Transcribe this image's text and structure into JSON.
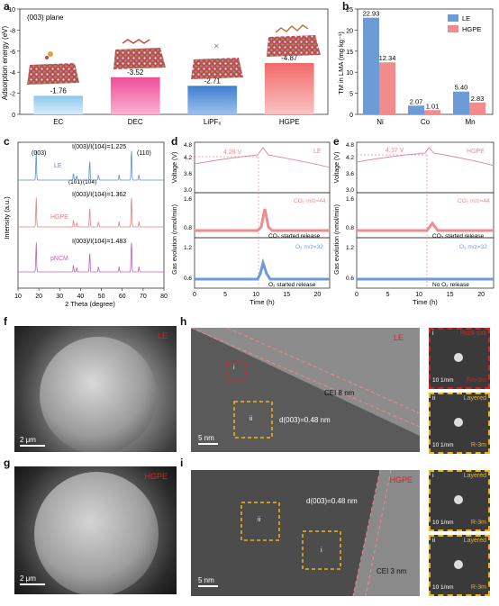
{
  "panels": {
    "a": {
      "label": "a",
      "title": "(003) plane",
      "ylabel": "Adsorption energy (eV)",
      "ticks": [
        "0",
        "-2",
        "-4",
        "-6",
        "-8",
        "-10"
      ]
    },
    "b": {
      "label": "b",
      "ylabel": "TM in LMA (mg kg⁻¹)",
      "ticks": [
        "0",
        "5",
        "10",
        "15",
        "20",
        "25"
      ]
    },
    "c": {
      "label": "c",
      "xlabel": "2 Theta (degree)",
      "ylabel": "Intensity (a.u.)",
      "ticks": [
        "10",
        "20",
        "30",
        "40",
        "50",
        "60",
        "70",
        "80"
      ],
      "peaks": [
        "(003)",
        "(101)",
        "(104)",
        "(110)"
      ],
      "samples": [
        {
          "name": "LE",
          "ratio": "I(003)/I(104)=1.225",
          "color": "#5b8fd0"
        },
        {
          "name": "HGPE",
          "ratio": "I(003)/I(104)=1.362",
          "color": "#e87f7f"
        },
        {
          "name": "pNCM",
          "ratio": "I(003)/I(104)=1.483",
          "color": "#c05fb6"
        }
      ]
    },
    "d": {
      "label": "d",
      "sample": "LE",
      "voltage_label": "4.29 V",
      "co2_label": "CO₂ m/z=44",
      "co2_release": "CO₂ started release",
      "o2_label": "O₂ m/z=32",
      "o2_release": "O₂ started release",
      "ylabel_top": "Voltage (V)",
      "ylabel_bottom": "Gas evolution (nmol/min)",
      "xlabel": "Time (h)",
      "vticks": [
        "4.8",
        "4.2",
        "3.6",
        "3.0"
      ],
      "gticks_co2": [
        "1.6",
        "0.8"
      ],
      "gticks_o2": [
        "1.2",
        "0.6"
      ],
      "xticks": [
        "0",
        "5",
        "10",
        "15",
        "20"
      ]
    },
    "e": {
      "label": "e",
      "sample": "HGPE",
      "voltage_label": "4.37 V",
      "co2_label": "CO₂ m/z=44",
      "co2_release": "CO₂ started release",
      "o2_label": "O₂ m/z=32",
      "o2_release": "No O₂ release",
      "ylabel_top": "Voltage (V)",
      "ylabel_bottom": "Gas evolution (nmol/min)",
      "xlabel": "Time (h)",
      "vticks": [
        "4.8",
        "4.2",
        "3.6",
        "3.0"
      ],
      "gticks_co2": [
        "1.6",
        "0.8"
      ],
      "gticks_o2": [
        "1.2",
        "0.6"
      ],
      "xticks": [
        "0",
        "5",
        "10",
        "15",
        "20"
      ]
    },
    "f": {
      "label": "f",
      "tag": "LE",
      "scale": "2 μm"
    },
    "g": {
      "label": "g",
      "tag": "HGPE",
      "scale": "2 μm"
    },
    "h": {
      "label": "h",
      "tag": "LE",
      "cei": "CEI 8 nm",
      "dspacing": "d(003)=0.48 nm",
      "scale": "5 nm",
      "box_i": "i",
      "box_ii": "ii",
      "fft1_top": "Rock-salt",
      "fft1_bottom": "Fm-3m",
      "fft1_roman": "i",
      "fft1_scale": "10 1/nm",
      "fft2_top": "Layered",
      "fft2_bottom": "R-3m",
      "fft2_roman": "ii",
      "fft2_scale": "10 1/nm"
    },
    "i": {
      "label": "i",
      "tag": "HGPE",
      "cei": "CEI 3 nm",
      "dspacing": "d(003)=0.48 nm",
      "scale": "5 nm",
      "box_i": "i",
      "box_ii": "ii",
      "fft1_top": "Layered",
      "fft1_bottom": "R-3m",
      "fft1_roman": "i",
      "fft1_scale": "10 1/nm",
      "fft2_top": "Layered",
      "fft2_bottom": "R-3m",
      "fft2_roman": "ii",
      "fft2_scale": "10 1/nm"
    }
  },
  "chart_data": [
    {
      "type": "bar",
      "panel": "a",
      "title": "(003) plane",
      "categories": [
        "EC",
        "DEC",
        "LiPF₆",
        "HGPE"
      ],
      "values": [
        -1.76,
        -3.52,
        -2.71,
        -4.87
      ],
      "labels": [
        "-1.76",
        "-3.52",
        "-2.71",
        "-4.87"
      ],
      "colors": [
        "#a9d3ef",
        "#f26fa9",
        "#5e94d6",
        "#f48686"
      ],
      "xlabel": "",
      "ylabel": "Adsorption energy (eV)",
      "ylim": [
        0,
        -10
      ]
    },
    {
      "type": "bar",
      "panel": "b",
      "categories": [
        "Ni",
        "Co",
        "Mn"
      ],
      "series": [
        {
          "name": "LE",
          "values": [
            22.93,
            2.07,
            5.4
          ],
          "labels": [
            "22.93",
            "2.07",
            "5.40"
          ],
          "color": "#6c9bd6"
        },
        {
          "name": "HGPE",
          "values": [
            12.34,
            1.01,
            2.83
          ],
          "labels": [
            "12.34",
            "1.01",
            "2.83"
          ],
          "color": "#f28b8b"
        }
      ],
      "xlabel": "",
      "ylabel": "TM in LMA (mg kg⁻¹)",
      "ylim": [
        0,
        25
      ]
    }
  ]
}
